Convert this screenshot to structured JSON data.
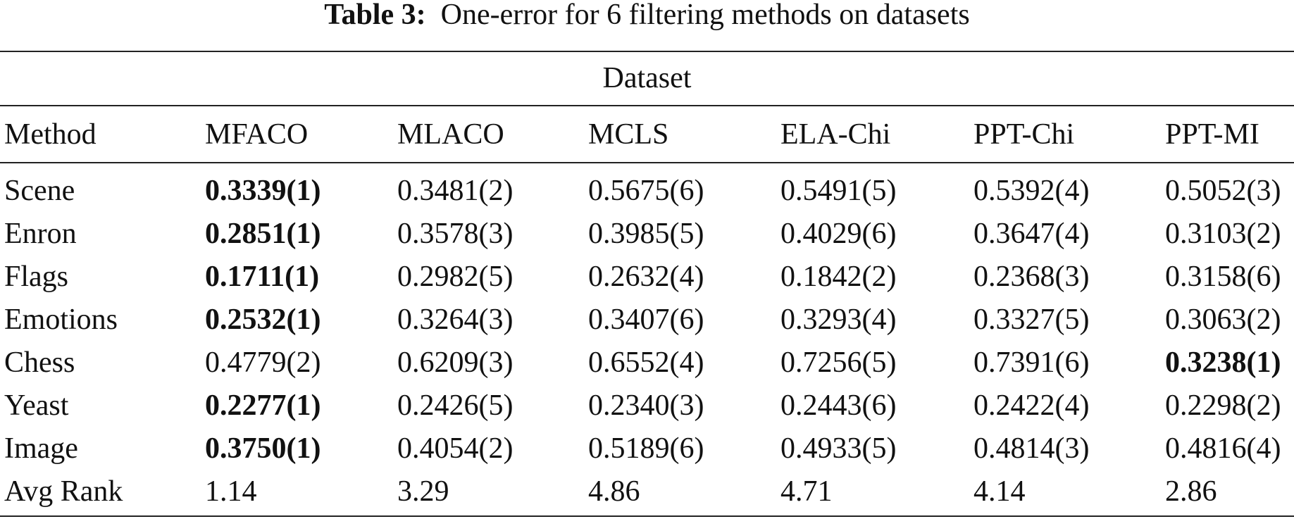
{
  "table": {
    "title": {
      "label": "Table 3:",
      "text": "One-error for 6 filtering methods on datasets"
    },
    "group_header": "Dataset",
    "columns": [
      "Method",
      "MFACO",
      "MLACO",
      "MCLS",
      "ELA-Chi",
      "PPT-Chi",
      "PPT-MI"
    ],
    "rows": [
      {
        "cells": [
          "Scene",
          "0.3339(1)",
          "0.3481(2)",
          "0.5675(6)",
          "0.5491(5)",
          "0.5392(4)",
          "0.5052(3)"
        ],
        "bold": 1
      },
      {
        "cells": [
          "Enron",
          "0.2851(1)",
          "0.3578(3)",
          "0.3985(5)",
          "0.4029(6)",
          "0.3647(4)",
          "0.3103(2)"
        ],
        "bold": 1
      },
      {
        "cells": [
          "Flags",
          "0.1711(1)",
          "0.2982(5)",
          "0.2632(4)",
          "0.1842(2)",
          "0.2368(3)",
          "0.3158(6)"
        ],
        "bold": 1
      },
      {
        "cells": [
          "Emotions",
          "0.2532(1)",
          "0.3264(3)",
          "0.3407(6)",
          "0.3293(4)",
          "0.3327(5)",
          "0.3063(2)"
        ],
        "bold": 1
      },
      {
        "cells": [
          "Chess",
          "0.4779(2)",
          "0.6209(3)",
          "0.6552(4)",
          "0.7256(5)",
          "0.7391(6)",
          "0.3238(1)"
        ],
        "bold": 6
      },
      {
        "cells": [
          "Yeast",
          "0.2277(1)",
          "0.2426(5)",
          "0.2340(3)",
          "0.2443(6)",
          "0.2422(4)",
          "0.2298(2)"
        ],
        "bold": 1
      },
      {
        "cells": [
          "Image",
          "0.3750(1)",
          "0.4054(2)",
          "0.5189(6)",
          "0.4933(5)",
          "0.4814(3)",
          "0.4816(4)"
        ],
        "bold": 1
      },
      {
        "cells": [
          "Avg Rank",
          "1.14",
          "3.29",
          "4.86",
          "4.71",
          "4.14",
          "2.86"
        ]
      }
    ]
  }
}
